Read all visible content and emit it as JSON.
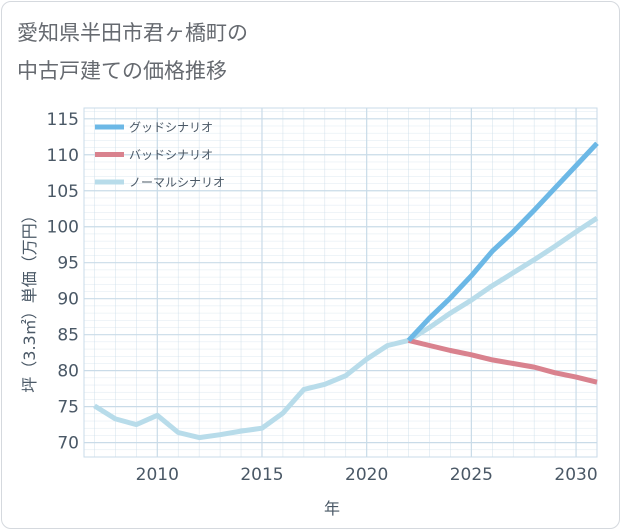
{
  "title_line1": "愛知県半田市君ヶ橋町の",
  "title_line2": "中古戸建ての価格推移",
  "colors": {
    "good": "#6cb8e6",
    "bad": "#d9828e",
    "normal": "#b8dcea",
    "grid": "#c9dbe8"
  },
  "chart_data": {
    "type": "line",
    "title": "愛知県半田市君ヶ橋町の中古戸建ての価格推移",
    "xlabel": "年",
    "ylabel": "坪（3.3㎡）単価（万円）",
    "xlim": [
      2006.5,
      2031
    ],
    "ylim": [
      68,
      116.5
    ],
    "xticks": [
      2010,
      2015,
      2020,
      2025,
      2030
    ],
    "yticks": [
      70,
      75,
      80,
      85,
      90,
      95,
      100,
      105,
      110,
      115
    ],
    "legend_position": "top-left",
    "series": [
      {
        "name": "グッドシナリオ",
        "color": "#6cb8e6",
        "x": [
          2022,
          2023,
          2024,
          2025,
          2026,
          2027,
          2028,
          2029,
          2030,
          2031
        ],
        "y": [
          84.2,
          87.3,
          90.1,
          93.2,
          96.6,
          99.3,
          102.3,
          105.4,
          108.5,
          111.6
        ]
      },
      {
        "name": "バッドシナリオ",
        "color": "#d9828e",
        "x": [
          2022,
          2023,
          2024,
          2025,
          2026,
          2027,
          2028,
          2029,
          2030,
          2031
        ],
        "y": [
          84.2,
          83.5,
          82.8,
          82.2,
          81.5,
          81.0,
          80.5,
          79.7,
          79.1,
          78.4
        ]
      },
      {
        "name": "ノーマルシナリオ",
        "color": "#b8dcea",
        "x": [
          2007,
          2008,
          2009,
          2010,
          2011,
          2012,
          2013,
          2014,
          2015,
          2016,
          2017,
          2018,
          2019,
          2020,
          2021,
          2022,
          2023,
          2024,
          2025,
          2026,
          2027,
          2028,
          2029,
          2030,
          2031
        ],
        "y": [
          75.1,
          73.3,
          72.5,
          73.8,
          71.4,
          70.7,
          71.1,
          71.6,
          72.0,
          74.1,
          77.4,
          78.1,
          79.3,
          81.6,
          83.5,
          84.2,
          86.0,
          88.0,
          89.8,
          91.8,
          93.6,
          95.4,
          97.3,
          99.3,
          101.2
        ]
      }
    ]
  }
}
